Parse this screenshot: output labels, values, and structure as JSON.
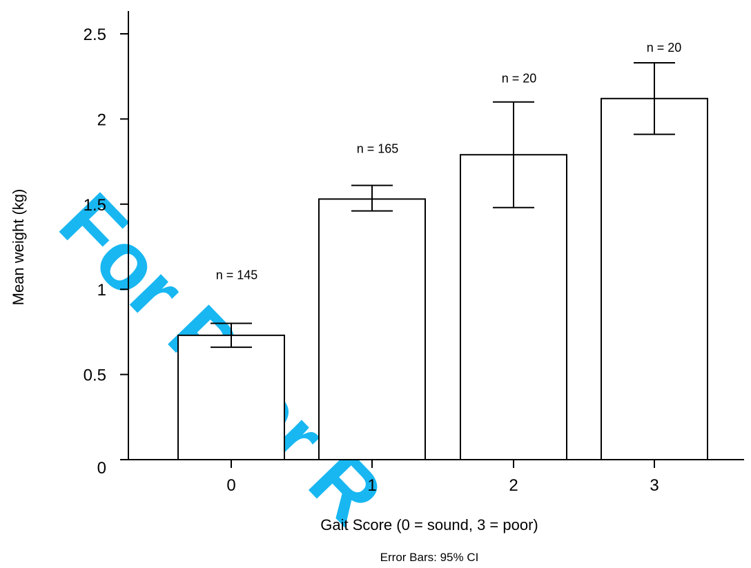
{
  "watermark": "For Peer R",
  "chart_data": {
    "type": "bar",
    "categories": [
      "0",
      "1",
      "2",
      "3"
    ],
    "values": [
      0.73,
      1.53,
      1.79,
      2.12
    ],
    "ci_low": [
      0.66,
      1.46,
      1.48,
      1.91
    ],
    "ci_high": [
      0.8,
      1.61,
      2.1,
      2.33
    ],
    "bar_labels": [
      "n = 145",
      "n = 165",
      "n = 20",
      "n = 20"
    ],
    "xlabel": "Gait Score (0 = sound, 3 = poor)",
    "ylabel": "Mean weight (kg)",
    "footnote": "Error Bars: 95% CI",
    "ylim": [
      0,
      2.5
    ],
    "yticks": [
      0,
      0.5,
      1,
      1.5,
      2,
      2.5
    ],
    "ytick_labels": [
      "0",
      "0.5",
      "1",
      "1.5",
      "2",
      "2.5"
    ],
    "bar_fill": "#ffffff",
    "bar_stroke": "#000000",
    "watermark_color": "#00b0f0",
    "grid": false
  }
}
